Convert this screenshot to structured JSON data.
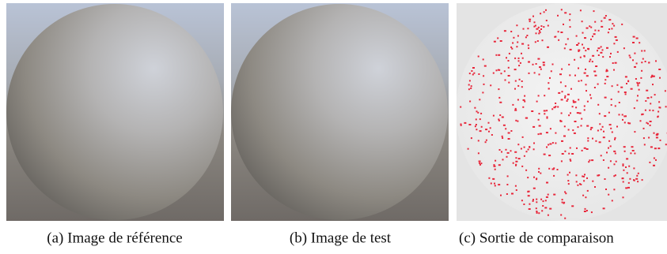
{
  "figure": {
    "captions": [
      "(a) Image de référence",
      "(b) Image de test",
      "(c) Sortie de comparaison"
    ]
  }
}
